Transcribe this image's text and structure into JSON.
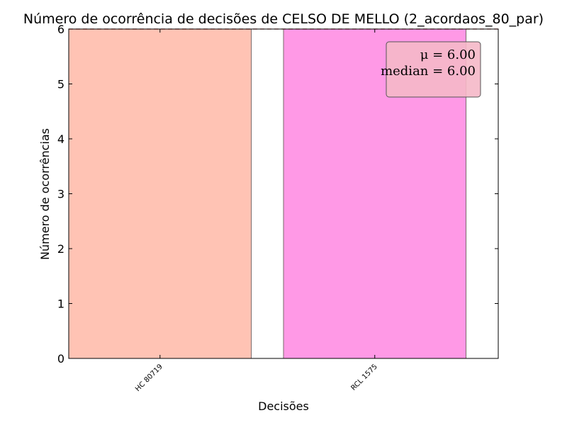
{
  "chart_data": {
    "type": "bar",
    "title": "Número de ocorrência de decisões de CELSO DE MELLO (2_acordaos_80_par)",
    "xlabel": "Decisões",
    "ylabel": "Número de ocorrências",
    "categories": [
      "HC 80719",
      "RCL 1575"
    ],
    "values": [
      6,
      6
    ],
    "bar_colors": [
      "#ffc3b4",
      "#ff99e6"
    ],
    "ylim": [
      0,
      6
    ],
    "yticks": [
      "0",
      "1",
      "2",
      "3",
      "4",
      "5",
      "6"
    ],
    "mean_line": 6,
    "grid": false,
    "legend": {
      "position": "top-right",
      "mean_text": "μ = 6.00",
      "median_text": "median = 6.00",
      "face_color": "#f5b8c8"
    }
  }
}
